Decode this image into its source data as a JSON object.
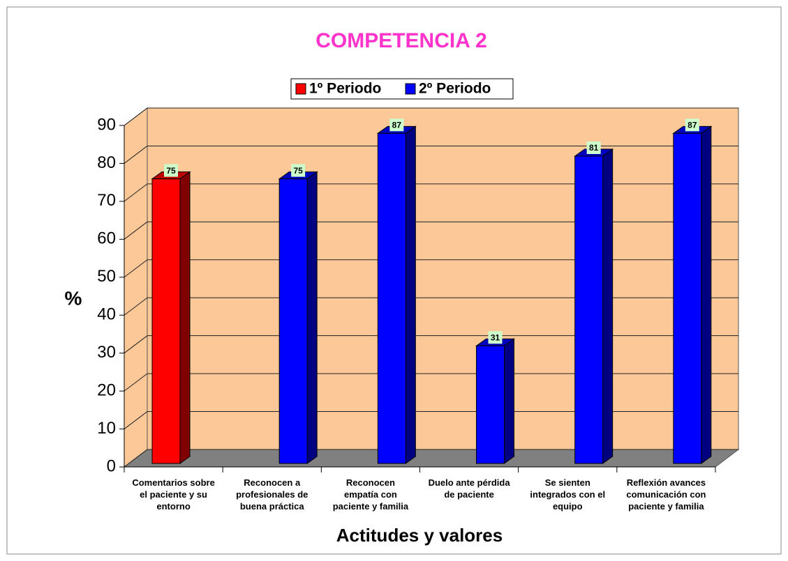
{
  "chart_data": {
    "type": "bar3d",
    "title": "COMPETENCIA 2",
    "y_label": "%",
    "x_label": "Actitudes y valores",
    "categories": [
      "Comentarios sobre\nel paciente y su\nentorno",
      "Reconocen a\nprofesionales de\nbuena práctica",
      "Reconocen\nempatía con\npaciente y familia",
      "Duelo ante pérdida\nde paciente",
      "Se sienten\nintegrados con el\nequipo",
      "Reflexión avances\ncomunicación con\npaciente y familia"
    ],
    "series": [
      {
        "name": "1º Periodo",
        "color": "#ff0000",
        "values": [
          75,
          null,
          null,
          null,
          null,
          null
        ]
      },
      {
        "name": "2º Periodo",
        "color": "#0000ff",
        "values": [
          null,
          75,
          87,
          31,
          81,
          87
        ]
      }
    ],
    "ylim": [
      0,
      90
    ],
    "yticks": [
      0,
      10,
      20,
      30,
      40,
      50,
      60,
      70,
      80,
      90
    ],
    "grid": true,
    "legend": "top"
  }
}
